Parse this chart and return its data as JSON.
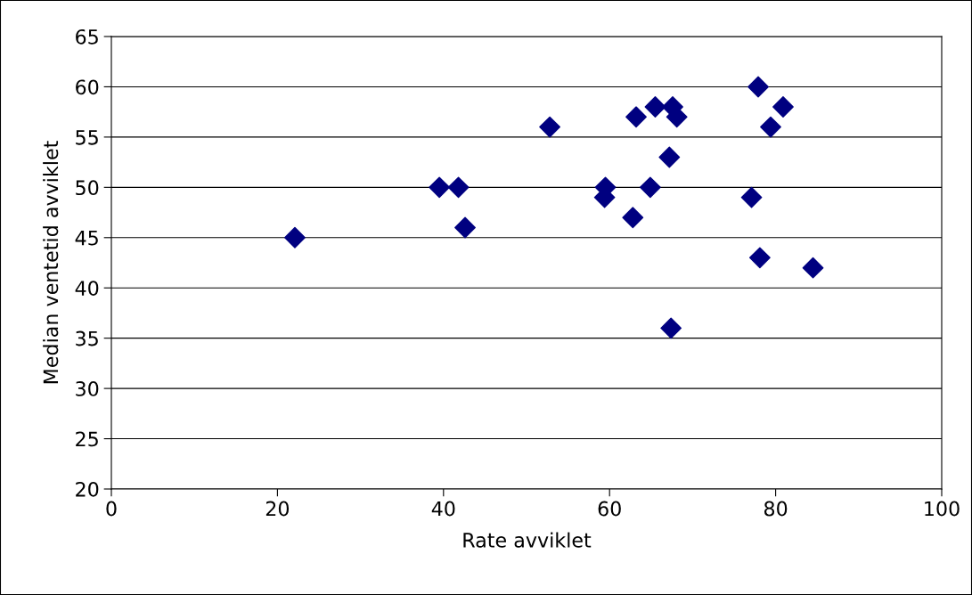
{
  "chart_data": {
    "type": "scatter",
    "xlabel": "Rate avviklet",
    "ylabel": "Median ventetid avviklet",
    "x": [
      22.1,
      39.5,
      41.8,
      42.6,
      52.8,
      59.5,
      59.4,
      62.8,
      63.2,
      64.9,
      65.5,
      67.2,
      67.6,
      68.1,
      67.4,
      77.1,
      77.9,
      78.1,
      79.4,
      80.9,
      84.5
    ],
    "series": [
      {
        "color": "#000080",
        "values": [
          45,
          50,
          50,
          46,
          56,
          50,
          49,
          47,
          57,
          50,
          58,
          53,
          58,
          57,
          36,
          49,
          60,
          43,
          56,
          58,
          42
        ]
      }
    ],
    "marker": "diamond",
    "grid": "y",
    "legend": false,
    "xlim": [
      0,
      100
    ],
    "xticks": [
      0,
      20,
      40,
      60,
      80,
      100
    ],
    "ylim": [
      20,
      65
    ],
    "yticks": [
      20,
      25,
      30,
      35,
      40,
      45,
      50,
      55,
      60,
      65
    ]
  }
}
